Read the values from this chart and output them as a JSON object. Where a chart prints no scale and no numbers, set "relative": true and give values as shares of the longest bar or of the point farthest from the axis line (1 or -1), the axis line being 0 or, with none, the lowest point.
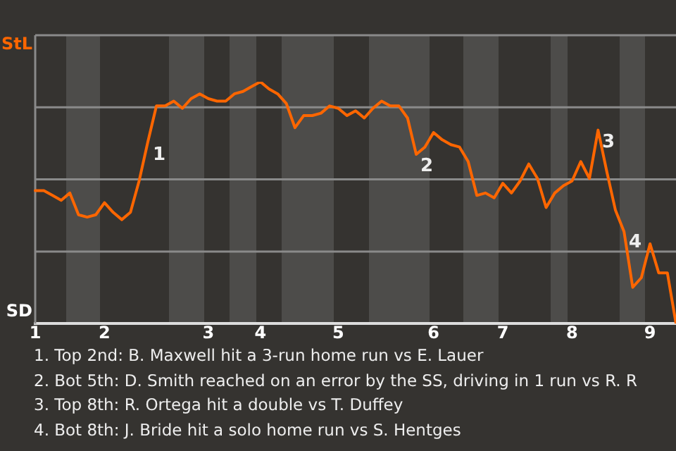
{
  "chart_data": {
    "type": "line",
    "relative": true,
    "categories": [
      "1",
      null,
      null,
      null,
      null,
      null,
      null,
      null,
      "2",
      null,
      null,
      null,
      null,
      null,
      null,
      null,
      null,
      null,
      null,
      null,
      "3",
      null,
      null,
      null,
      null,
      null,
      "4",
      null,
      null,
      null,
      null,
      null,
      null,
      null,
      null,
      "5",
      null,
      null,
      null,
      null,
      null,
      null,
      null,
      null,
      null,
      null,
      "6",
      null,
      null,
      null,
      null,
      null,
      null,
      null,
      "7",
      null,
      null,
      null,
      null,
      null,
      null,
      null,
      "8",
      null,
      null,
      null,
      null,
      null,
      null,
      null,
      null,
      "9",
      null,
      null,
      null
    ],
    "legend": false,
    "marker": "none",
    "line_style": "solid",
    "series": [
      {
        "color": "#ff6600",
        "values": [
          0.55,
          0.55,
          0.53,
          0.51,
          0.54,
          0.45,
          0.44,
          0.45,
          0.5,
          0.46,
          0.43,
          0.46,
          0.59,
          0.75,
          0.9,
          0.9,
          0.92,
          0.89,
          0.93,
          0.95,
          0.93,
          0.92,
          0.92,
          0.95,
          0.96,
          0.98,
          1,
          0.97,
          0.95,
          0.91,
          0.81,
          0.86,
          0.86,
          0.87,
          0.9,
          0.89,
          0.86,
          0.88,
          0.85,
          0.89,
          0.92,
          0.9,
          0.9,
          0.85,
          0.7,
          0.73,
          0.79,
          0.76,
          0.74,
          0.73,
          0.67,
          0.53,
          0.54,
          0.52,
          0.58,
          0.54,
          0.59,
          0.66,
          0.6,
          0.48,
          0.54,
          0.57,
          0.59,
          0.67,
          0.6,
          0.8,
          0.63,
          0.47,
          0.38,
          0.15,
          0.19,
          0.33,
          0.21,
          0.21,
          0
        ]
      }
    ],
    "annotations": [
      "StL",
      "SD",
      "1",
      "2",
      "3",
      "4",
      "1. Top 2nd: B. Maxwell hit a 3-run home run vs E. Lauer",
      "2. Bot 5th: D. Smith reached on an error by the SS, driving in 1 run vs R. R",
      "3. Top 8th: R. Ortega hit a double vs T. Duffey",
      "4. Bot 8th: J. Bride hit a solo home run vs S. Hentges"
    ]
  }
}
